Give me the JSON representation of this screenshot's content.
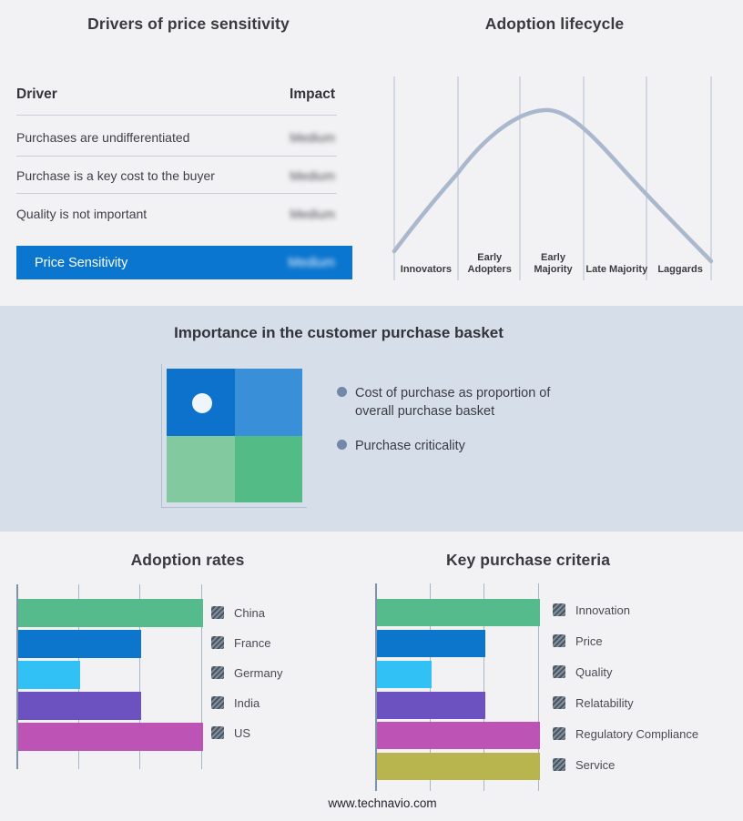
{
  "colors": {
    "page_bg": "#f2f2f4",
    "band_bg": "#d5dee9",
    "accent_blue": "#0b76cf",
    "curve": "#a9b8cd",
    "gridline": "#b5bfd1",
    "legend_marker": "#4a5560"
  },
  "drivers_panel": {
    "title": "Drivers of price sensitivity",
    "col_driver": "Driver",
    "col_impact": "Impact",
    "rows": [
      {
        "driver": "Purchases are undifferentiated",
        "impact": "Medium"
      },
      {
        "driver": "Purchase is a key cost to the buyer",
        "impact": "Medium"
      },
      {
        "driver": "Quality is not important",
        "impact": "Medium"
      }
    ],
    "highlight_row": {
      "label": "Price Sensitivity",
      "impact": "Medium"
    }
  },
  "lifecycle_panel": {
    "title": "Adoption lifecycle"
  },
  "basket_panel": {
    "title": "Importance in the customer purchase basket",
    "bullets": [
      "Cost of purchase as proportion of overall purchase basket",
      "Purchase criticality"
    ],
    "quadrant_colors": [
      "#0c72cb",
      "#3990d9",
      "#82c9a0",
      "#52bb86"
    ],
    "quadrant_marker": "white dot in top-left quadrant"
  },
  "adoption_panel": {
    "title": "Adoption rates"
  },
  "criteria_panel": {
    "title": "Key purchase criteria"
  },
  "footer": {
    "site": "www.technavio.com"
  },
  "chart_data": [
    {
      "type": "line",
      "title": "Adoption lifecycle",
      "categories": [
        "Innovators",
        "Early Adopters",
        "Early Majority",
        "Late Majority",
        "Laggards"
      ],
      "values": [
        0.32,
        0.76,
        0.99,
        0.69,
        0.25
      ],
      "ylim": [
        0,
        1
      ],
      "peak_at": "Early Majority",
      "grid": "vertical stage separators only",
      "axis_labels": "none",
      "line_color": "#a9b8cd"
    },
    {
      "type": "bar",
      "orientation": "horizontal",
      "title": "Adoption rates",
      "categories": [
        "China",
        "France",
        "Germany",
        "India",
        "US"
      ],
      "values": [
        3,
        2,
        1,
        2,
        3
      ],
      "xlim": [
        0,
        3
      ],
      "gridlines": [
        1,
        2,
        3
      ],
      "tick_labels": "none",
      "legend_position": "right",
      "colors": [
        "#55bb8d",
        "#0b76cc",
        "#31c1f5",
        "#6c52c0",
        "#bd53b5"
      ]
    },
    {
      "type": "bar",
      "orientation": "horizontal",
      "title": "Key purchase criteria",
      "categories": [
        "Innovation",
        "Price",
        "Quality",
        "Relatability",
        "Regulatory Compliance",
        "Service"
      ],
      "values": [
        3,
        2,
        1,
        2,
        3,
        3
      ],
      "xlim": [
        0,
        3
      ],
      "gridlines": [
        1,
        2,
        3
      ],
      "tick_labels": "none",
      "legend_position": "right",
      "colors": [
        "#55bb8d",
        "#0b76cc",
        "#31c1f5",
        "#6c52c0",
        "#bd53b5",
        "#b9b54e"
      ]
    }
  ]
}
